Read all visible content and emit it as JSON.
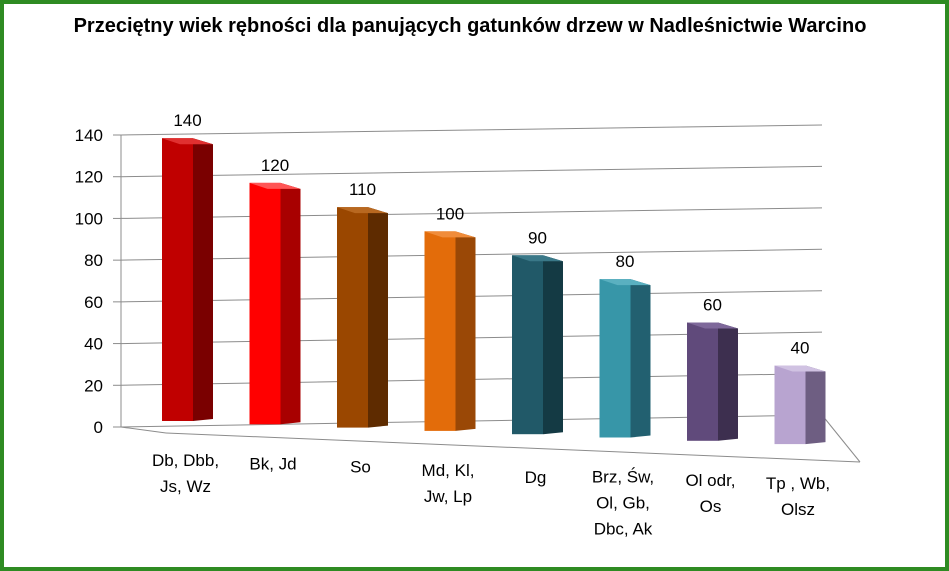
{
  "chart_data": {
    "type": "bar",
    "title": "Przeciętny wiek rębności dla panujących gatunków drzew w Nadleśnictwie Warcino",
    "categories": [
      [
        "Db, Dbb,",
        "Js, Wz"
      ],
      [
        "Bk, Jd"
      ],
      [
        "So"
      ],
      [
        "Md, Kl,",
        "Jw, Lp"
      ],
      [
        "Dg"
      ],
      [
        "Brz, Św,",
        "Ol, Gb,",
        "Dbc, Ak"
      ],
      [
        "Ol odr,",
        "Os"
      ],
      [
        "Tp , Wb,",
        "Olsz"
      ]
    ],
    "values": [
      140,
      120,
      110,
      100,
      90,
      80,
      60,
      40
    ],
    "bar_colors": [
      {
        "front": "#c00000",
        "side": "#7a0000",
        "top": "#e03030"
      },
      {
        "front": "#ff0000",
        "side": "#a80000",
        "top": "#ff5555"
      },
      {
        "front": "#9a4700",
        "side": "#5e2b00",
        "top": "#b86820"
      },
      {
        "front": "#e36c0a",
        "side": "#9a4806",
        "top": "#f08c3a"
      },
      {
        "front": "#215968",
        "side": "#143a44",
        "top": "#3a7888"
      },
      {
        "front": "#3796a8",
        "side": "#226070",
        "top": "#5ab0c0"
      },
      {
        "front": "#604a7b",
        "side": "#3d2f4f",
        "top": "#7e689a"
      },
      {
        "front": "#b8a4d0",
        "side": "#6e5e82",
        "top": "#d0c2e2"
      }
    ],
    "yticks": [
      0,
      20,
      40,
      60,
      80,
      100,
      120,
      140
    ],
    "ylim": [
      0,
      140
    ],
    "grid": true,
    "legend": "none"
  }
}
